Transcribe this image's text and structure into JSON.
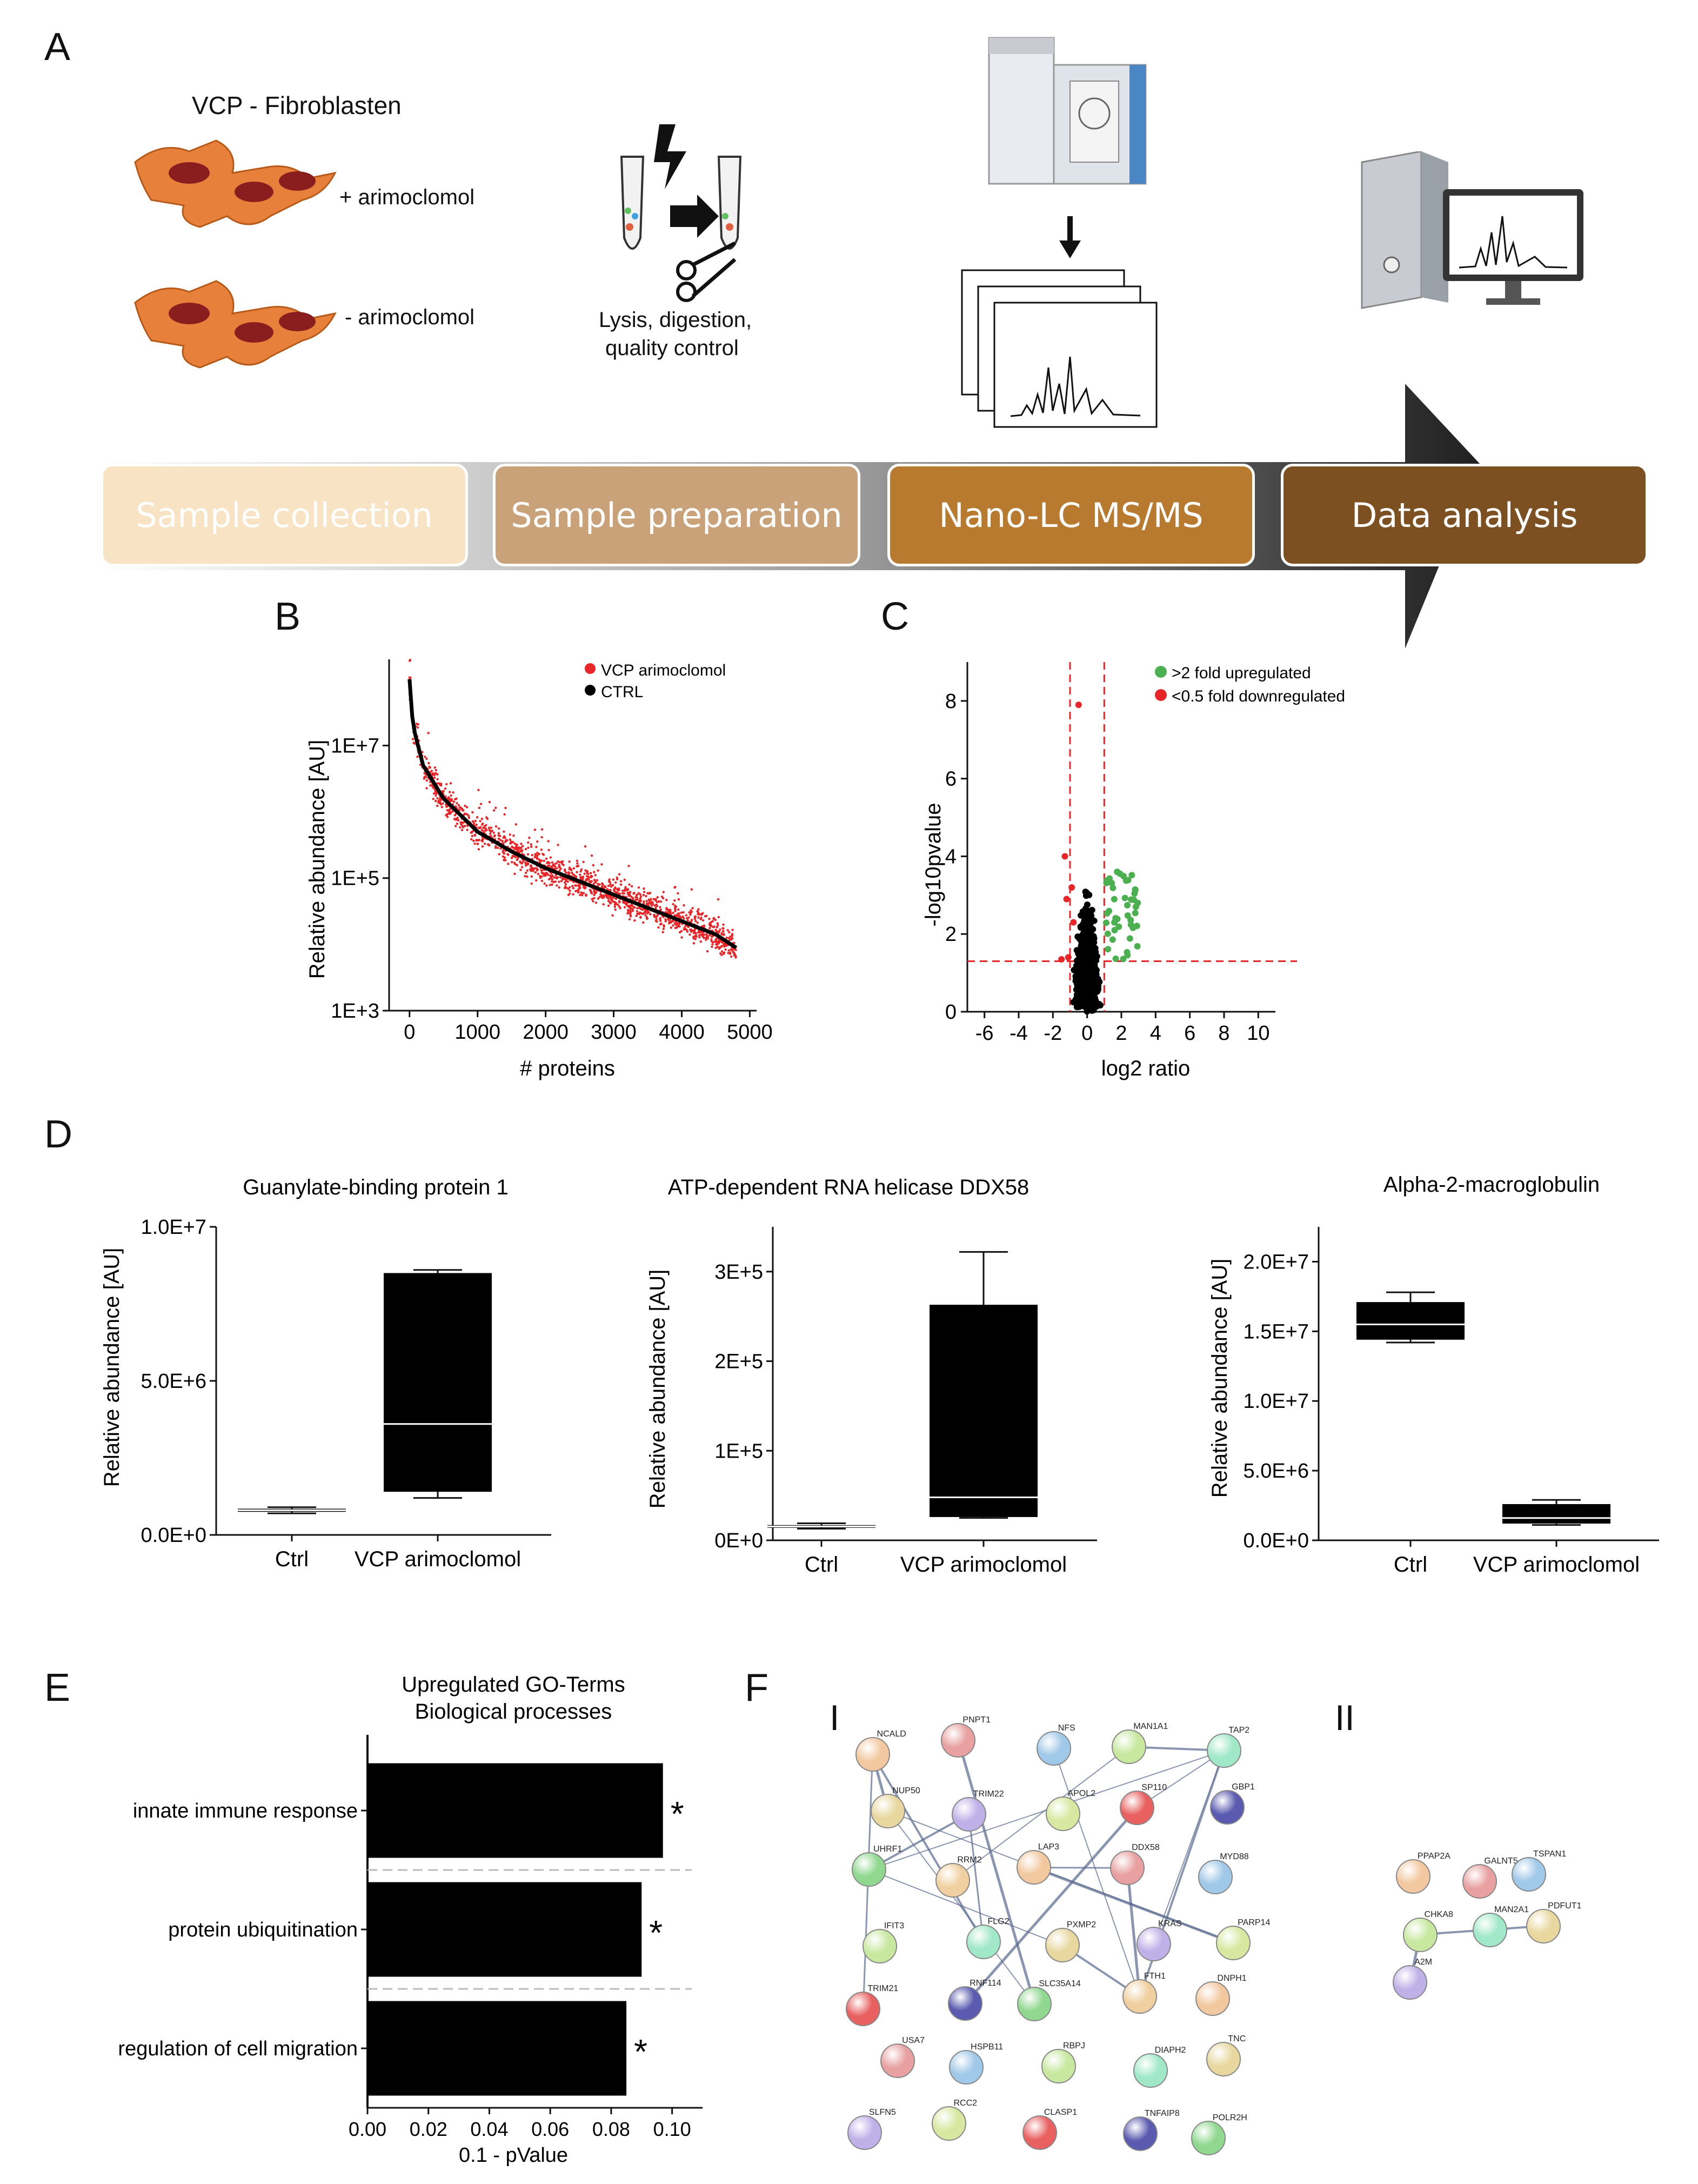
{
  "panels": {
    "A": "A",
    "B": "B",
    "C": "C",
    "D": "D",
    "E": "E",
    "F": "F"
  },
  "panelA": {
    "cells_title": "VCP - Fibroblasten",
    "treated": "+ arimoclomol",
    "untreated": "- arimoclomol",
    "prep_line1": "Lysis, digestion,",
    "prep_line2": "quality control",
    "steps": [
      {
        "label": "Sample collection",
        "color": "#f8e3c4"
      },
      {
        "label": "Sample preparation",
        "color": "#c9a27a"
      },
      {
        "label": "Nano-LC MS/MS",
        "color": "#b77a2e"
      },
      {
        "label": "Data analysis",
        "color": "#7d5022"
      }
    ]
  },
  "chart_data": [
    {
      "id": "B",
      "type": "scatter",
      "xlabel": "# proteins",
      "ylabel": "Relative abundance [AU]",
      "x_ticks": [
        "0",
        "1000",
        "2000",
        "3000",
        "4000",
        "5000"
      ],
      "y_ticks": [
        "1E+3",
        "1E+5",
        "1E+7"
      ],
      "xlim": [
        -300,
        5100
      ],
      "ylim_log10": [
        3,
        8.3
      ],
      "series": [
        {
          "name": "VCP arimoclomol",
          "color": "#e8262a"
        },
        {
          "name": "CTRL",
          "color": "#000000"
        }
      ],
      "curve": [
        [
          0,
          8.0
        ],
        [
          50,
          7.3
        ],
        [
          200,
          6.7
        ],
        [
          500,
          6.2
        ],
        [
          1000,
          5.7
        ],
        [
          1500,
          5.4
        ],
        [
          2000,
          5.15
        ],
        [
          2500,
          4.95
        ],
        [
          3000,
          4.75
        ],
        [
          3500,
          4.55
        ],
        [
          4000,
          4.35
        ],
        [
          4500,
          4.15
        ],
        [
          4800,
          3.95
        ]
      ]
    },
    {
      "id": "C",
      "type": "scatter",
      "xlabel": "log2 ratio",
      "ylabel": "-log10pvalue",
      "x_ticks": [
        "-6",
        "-4",
        "-2",
        "0",
        "2",
        "4",
        "6",
        "8",
        "10"
      ],
      "y_ticks": [
        "0",
        "2",
        "4",
        "6",
        "8"
      ],
      "xlim": [
        -7,
        11
      ],
      "ylim": [
        0,
        9
      ],
      "thresholds": {
        "x": [
          -1,
          1
        ],
        "y": 1.3
      },
      "series": [
        {
          "name": ">2 fold upregulated",
          "color": "#4caf50"
        },
        {
          "name": "<0.5 fold downregulated",
          "color": "#e8262a"
        }
      ]
    },
    {
      "id": "D1",
      "type": "box",
      "title": "Guanylate-binding protein 1",
      "ylabel": "Relative abundance [AU]",
      "categories": [
        "Ctrl",
        "VCP arimoclomol"
      ],
      "y_ticks": [
        "0.0E+0",
        "5.0E+6",
        "1.0E+7"
      ],
      "ylim": [
        0,
        10000000
      ],
      "boxes": [
        {
          "min": 700000,
          "q1": 750000,
          "median": 800000,
          "q3": 850000,
          "max": 900000
        },
        {
          "min": 1200000,
          "q1": 1400000,
          "median": 3600000,
          "q3": 8500000,
          "max": 8600000
        }
      ]
    },
    {
      "id": "D2",
      "type": "box",
      "title": "ATP-dependent RNA helicase DDX58",
      "ylabel": "Relative abundance [AU]",
      "categories": [
        "Ctrl",
        "VCP arimoclomol"
      ],
      "y_ticks": [
        "0E+0",
        "1E+5",
        "2E+5",
        "3E+5"
      ],
      "ylim": [
        0,
        350000
      ],
      "boxes": [
        {
          "min": 13000,
          "q1": 14000,
          "median": 15500,
          "q3": 17000,
          "max": 19000
        },
        {
          "min": 25000,
          "q1": 26000,
          "median": 48000,
          "q3": 263000,
          "max": 322000
        }
      ]
    },
    {
      "id": "D3",
      "type": "box",
      "title": "Alpha-2-macroglobulin",
      "ylabel": "Relative abundance [AU]",
      "categories": [
        "Ctrl",
        "VCP arimoclomol"
      ],
      "y_ticks": [
        "0.0E+0",
        "5.0E+6",
        "1.0E+7",
        "1.5E+7",
        "2.0E+7"
      ],
      "ylim": [
        0,
        22500000
      ],
      "boxes": [
        {
          "min": 14200000,
          "q1": 14400000,
          "median": 15500000,
          "q3": 17100000,
          "max": 17800000
        },
        {
          "min": 1100000,
          "q1": 1200000,
          "median": 1600000,
          "q3": 2600000,
          "max": 2900000
        }
      ]
    },
    {
      "id": "E",
      "type": "bar",
      "orientation": "horizontal",
      "title_line1": "Upregulated GO-Terms",
      "title_line2": "Biological processes",
      "categories": [
        "innate immune response",
        "protein ubiquitination",
        "regulation of cell migration"
      ],
      "values": [
        0.097,
        0.09,
        0.085
      ],
      "marker": "*",
      "xlabel": "0.1 - pValue",
      "x_ticks": [
        "0.00",
        "0.02",
        "0.04",
        "0.06",
        "0.08",
        "0.10"
      ],
      "xlim": [
        0,
        0.11
      ]
    }
  ],
  "panelF": {
    "sub_I": "I",
    "sub_II": "II",
    "networkI": [
      "NCALD",
      "PNPT1",
      "NFS",
      "MAN1A1",
      "TAP2",
      "NUP50",
      "TRIM22",
      "APOL2",
      "SP110",
      "GBP1",
      "UHRF1",
      "RRM2",
      "LAP3",
      "DDX58",
      "MYD88",
      "IFIT3",
      "FLG2",
      "PXMP2",
      "KRAS",
      "PARP14",
      "TRIM21",
      "RNF114",
      "SLC35A14",
      "FTH1",
      "DNPH1",
      "USA7",
      "HSPB11",
      "RBPJ",
      "DIAPH2",
      "TNC",
      "SLFN5",
      "RCC2",
      "CLASP1",
      "TNFAIP8",
      "POLR2H"
    ],
    "networkII": [
      "PPAP2A",
      "GALNT5",
      "TSPAN1",
      "CHKA8",
      "MAN2A1",
      "PDFUT1",
      "A2M"
    ]
  }
}
